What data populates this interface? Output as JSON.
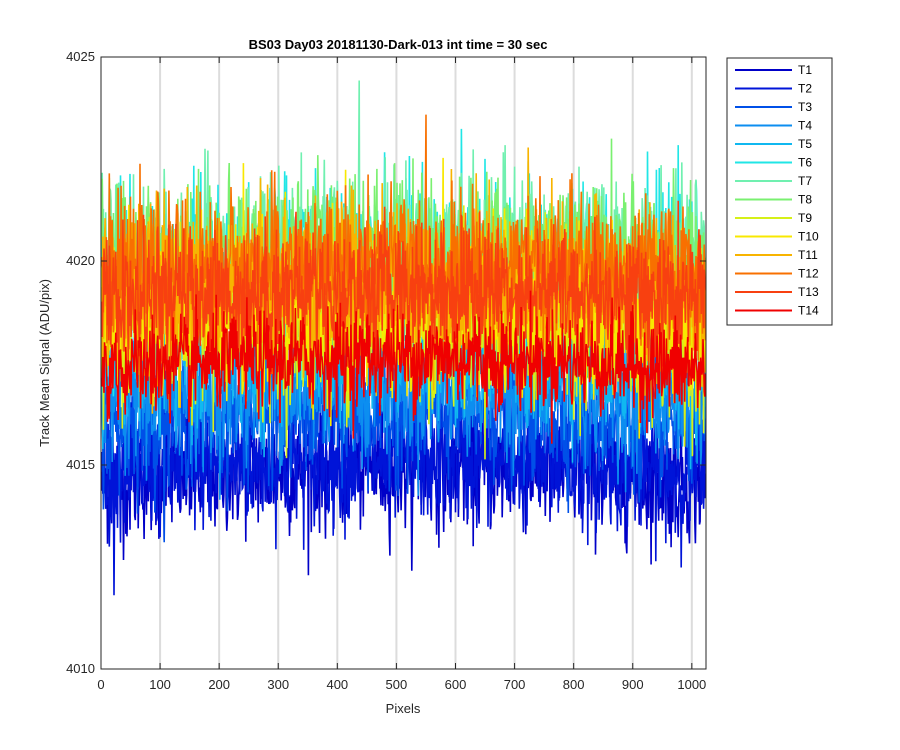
{
  "chart_data": {
    "type": "line",
    "title": "BS03 Day03 20181130-Dark-013 int time = 30 sec",
    "xlabel": "Pixels",
    "ylabel": "Track Mean Signal (ADU/pix)",
    "xlim": [
      0,
      1024
    ],
    "ylim": [
      4010,
      4025
    ],
    "xticks": [
      0,
      100,
      200,
      300,
      400,
      500,
      600,
      700,
      800,
      900,
      1000
    ],
    "yticks": [
      4010,
      4015,
      4020,
      4025
    ],
    "grid": "vertical",
    "legend_position": "outside-top-right",
    "series": [
      {
        "name": "T1",
        "color": "#0000c8",
        "mean": 4014.6,
        "noise": 0.75
      },
      {
        "name": "T2",
        "color": "#0014d8",
        "mean": 4014.8,
        "noise": 0.75
      },
      {
        "name": "T3",
        "color": "#0050e8",
        "mean": 4016.0,
        "noise": 0.8
      },
      {
        "name": "T4",
        "color": "#0c8ef0",
        "mean": 4016.6,
        "noise": 0.8
      },
      {
        "name": "T5",
        "color": "#10b8f0",
        "mean": 4017.6,
        "noise": 0.9
      },
      {
        "name": "T6",
        "color": "#20e6e6",
        "mean": 4019.6,
        "noise": 1.0
      },
      {
        "name": "T7",
        "color": "#70f0b0",
        "mean": 4019.8,
        "noise": 1.0
      },
      {
        "name": "T8",
        "color": "#7af070",
        "mean": 4019.8,
        "noise": 1.0
      },
      {
        "name": "T9",
        "color": "#d6f018",
        "mean": 4018.2,
        "noise": 1.0
      },
      {
        "name": "T10",
        "color": "#f8e800",
        "mean": 4018.6,
        "noise": 1.0
      },
      {
        "name": "T11",
        "color": "#f8b400",
        "mean": 4019.2,
        "noise": 1.0
      },
      {
        "name": "T12",
        "color": "#f87000",
        "mean": 4019.6,
        "noise": 0.85
      },
      {
        "name": "T13",
        "color": "#f84010",
        "mean": 4019.0,
        "noise": 0.8
      },
      {
        "name": "T14",
        "color": "#f00000",
        "mean": 4017.3,
        "noise": 0.6
      }
    ]
  }
}
